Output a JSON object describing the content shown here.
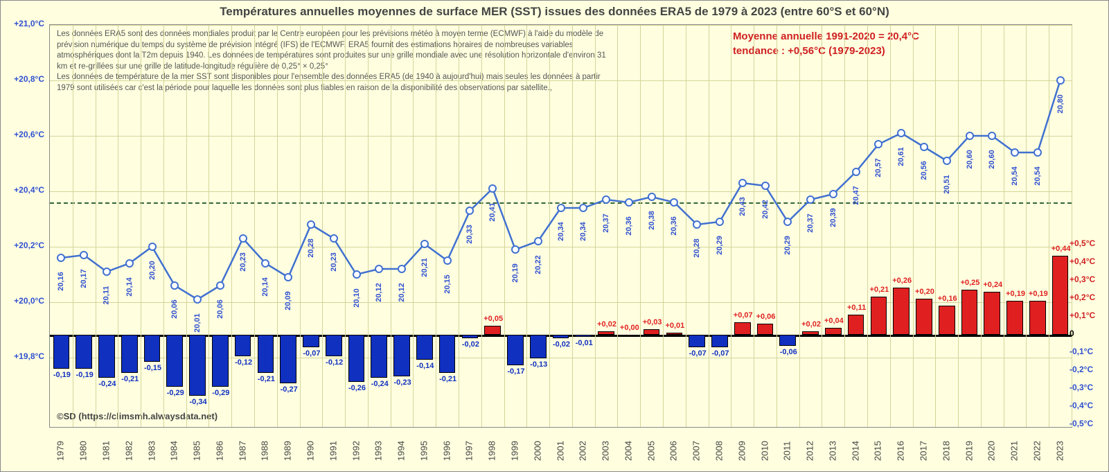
{
  "title": "Températures annuelles moyennes de surface MER (SST)  issues des données  ERA5 de 1979 à 2023 (entre 60°S et 60°N)",
  "description_p1": "Les données ERA5 sont des données mondiales produit par le Centre européen pour les prévisions météo à moyen terme (ECMWF) à l'aide du modèle de prévision numérique du temps du système de prévision intégré (IFS) de l'ECMWF. ERA5 fournit des estimations horaires de nombreuses variables atmosphériques dont la T2m depuis 1940. Les données de températures sont produites sur une grille mondiale avec une résolution horizontale d'environ 31 km et re-grillées sur une grille de latitude-longitude régulière de 0,25° × 0,25°",
  "description_p2": "Les données de température de la mer SST sont disponibles pour l'ensemble des données ERA5 (de 1940 à aujourd'hui) mais seules les données à partir 1979 sont utilisées car c'est la période pour laquelle les données sont plus fiables en raison de la disponibilité des observations par satellite.,",
  "annotation_line1": "Moyenne annuelle 1991-2020 = 20,4°C",
  "annotation_line2": "tendance : +0,56°C (1979-2023)",
  "credit": "©SD (https://climsmh.alwaysdata.net)",
  "chart": {
    "type": "combo-line-bar-dual-axis",
    "background_color": "#ffffe0",
    "grid_color": "#d4d49a",
    "line_color": "#4070d0",
    "marker_fill": "#ffffff",
    "bar_neg_color": "#1030c0",
    "bar_pos_color": "#e02020",
    "mean_line_color": "#336633",
    "left_axis": {
      "min": 19.55,
      "max": 21.0,
      "ticks": [
        19.8,
        20.0,
        20.2,
        20.4,
        20.6,
        20.8,
        21.0
      ],
      "labels": [
        "+19,8°C",
        "+20,0°C",
        "+20,2°C",
        "+20,4°C",
        "+20,6°C",
        "+20,8°C",
        "+21,0°C"
      ]
    },
    "right_axis": {
      "min": -0.5,
      "max": 0.5,
      "ticks": [
        -0.5,
        -0.4,
        -0.3,
        -0.2,
        -0.1,
        0,
        0.1,
        0.2,
        0.3,
        0.4,
        0.5
      ],
      "labels": [
        "-0,5°C",
        "-0,4°C",
        "-0,3°C",
        "-0,2°C",
        "-0,1°C",
        "0",
        "+0,1°C",
        "+0,2°C",
        "+0,3°C",
        "+0,4°C",
        "+0,5°C"
      ],
      "colors": [
        "blue",
        "blue",
        "blue",
        "blue",
        "blue",
        "black",
        "red",
        "red",
        "red",
        "red",
        "red"
      ]
    },
    "mean_value": 20.36,
    "years": [
      1979,
      1980,
      1981,
      1982,
      1983,
      1984,
      1985,
      1986,
      1987,
      1988,
      1989,
      1990,
      1991,
      1992,
      1993,
      1994,
      1995,
      1996,
      1997,
      1998,
      1999,
      2000,
      2001,
      2002,
      2003,
      2004,
      2005,
      2006,
      2007,
      2008,
      2009,
      2010,
      2011,
      2012,
      2013,
      2014,
      2015,
      2016,
      2017,
      2018,
      2019,
      2020,
      2021,
      2022,
      2023
    ],
    "temps": [
      20.16,
      20.17,
      20.11,
      20.14,
      20.2,
      20.06,
      20.01,
      20.06,
      20.23,
      20.14,
      20.09,
      20.28,
      20.23,
      20.1,
      20.12,
      20.12,
      20.21,
      20.15,
      20.33,
      20.41,
      20.19,
      20.22,
      20.34,
      20.34,
      20.37,
      20.36,
      20.38,
      20.36,
      20.28,
      20.29,
      20.43,
      20.42,
      20.29,
      20.37,
      20.39,
      20.47,
      20.57,
      20.61,
      20.56,
      20.51,
      20.6,
      20.6,
      20.54,
      20.54,
      20.8
    ],
    "temp_labels": [
      "20,16",
      "20,17",
      "20,11",
      "20,14",
      "20,20",
      "20,06",
      "20,01",
      "20,06",
      "20,23",
      "20,14",
      "20,09",
      "20,28",
      "20,23",
      "20,10",
      "20,12",
      "20,12",
      "20,21",
      "20,15",
      "20,33",
      "20,41",
      "20,19",
      "20,22",
      "20,34",
      "20,34",
      "20,37",
      "20,36",
      "20,38",
      "20,36",
      "20,28",
      "20,29",
      "20,43",
      "20,42",
      "20,29",
      "20,37",
      "20,39",
      "20,47",
      "20,57",
      "20,61",
      "20,56",
      "20,51",
      "20,60",
      "20,60",
      "20,54",
      "20,54",
      "20,80"
    ],
    "anoms": [
      -0.19,
      -0.19,
      -0.24,
      -0.21,
      -0.15,
      -0.29,
      -0.34,
      -0.29,
      -0.12,
      -0.21,
      -0.27,
      -0.07,
      -0.12,
      -0.26,
      -0.24,
      -0.23,
      -0.14,
      -0.21,
      -0.02,
      0.05,
      -0.17,
      -0.13,
      -0.02,
      -0.01,
      0.02,
      0.0,
      0.03,
      0.01,
      -0.07,
      -0.07,
      0.07,
      0.06,
      -0.06,
      0.02,
      0.04,
      0.11,
      0.21,
      0.26,
      0.2,
      0.16,
      0.25,
      0.24,
      0.19,
      0.19,
      0.44
    ],
    "anom_labels": [
      "-0,19",
      "-0,19",
      "-0,24",
      "-0,21",
      "-0,15",
      "-0,29",
      "-0,34",
      "-0,29",
      "-0,12",
      "-0,21",
      "-0,27",
      "-0,07",
      "-0,12",
      "-0,26",
      "-0,24",
      "-0,23",
      "-0,14",
      "-0,21",
      "-0,02",
      "+0,05",
      "-0,17",
      "-0,13",
      "-0,02",
      "-0,01",
      "+0,02",
      "+0,00",
      "+0,03",
      "+0,01",
      "-0,07",
      "-0,07",
      "+0,07",
      "+0,06",
      "-0,06",
      "+0,02",
      "+0,04",
      "+0,11",
      "+0,21",
      "+0,26",
      "+0,20",
      "+0,16",
      "+0,25",
      "+0,24",
      "+0,19",
      "+0,19",
      "+0,44"
    ]
  }
}
